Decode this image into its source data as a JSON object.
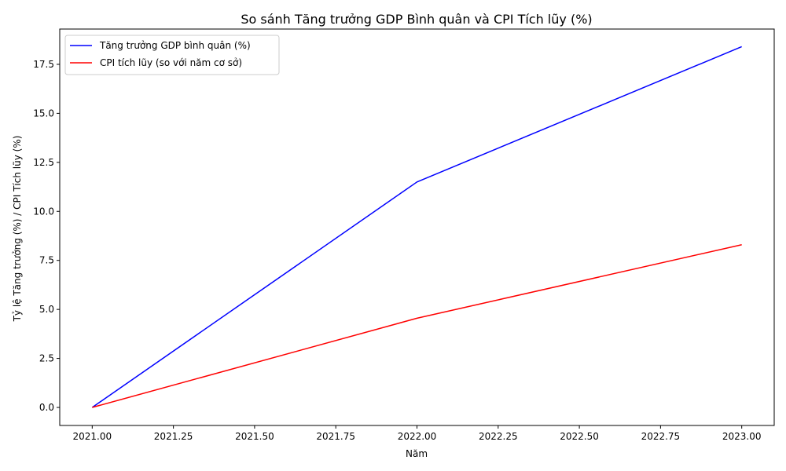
{
  "chart_data": {
    "type": "line",
    "title": "So sánh Tăng trưởng GDP Bình quân và CPI Tích lũy (%)",
    "xlabel": "Năm",
    "ylabel": "Tỷ lệ Tăng trưởng (%) / CPI Tích lũy (%)",
    "x": [
      2021,
      2022,
      2023
    ],
    "xlim": [
      2020.9,
      2023.1
    ],
    "ylim": [
      -0.92,
      19.3
    ],
    "xticks": [
      2021.0,
      2021.25,
      2021.5,
      2021.75,
      2022.0,
      2022.25,
      2022.5,
      2022.75,
      2023.0
    ],
    "xtick_labels": [
      "2021.00",
      "2021.25",
      "2021.50",
      "2021.75",
      "2022.00",
      "2022.25",
      "2022.50",
      "2022.75",
      "2023.00"
    ],
    "yticks": [
      0.0,
      2.5,
      5.0,
      7.5,
      10.0,
      12.5,
      15.0,
      17.5
    ],
    "ytick_labels": [
      "0.0",
      "2.5",
      "5.0",
      "7.5",
      "10.0",
      "12.5",
      "15.0",
      "17.5"
    ],
    "grid": false,
    "legend_position": "top-left",
    "series": [
      {
        "name": "Tăng trưởng GDP bình quân (%)",
        "values": [
          0.0,
          11.5,
          18.4
        ],
        "color": "#0000ff"
      },
      {
        "name": "CPI tích lũy (so với năm cơ sở)",
        "values": [
          0.0,
          4.55,
          8.3
        ],
        "color": "#ff0000"
      }
    ]
  }
}
